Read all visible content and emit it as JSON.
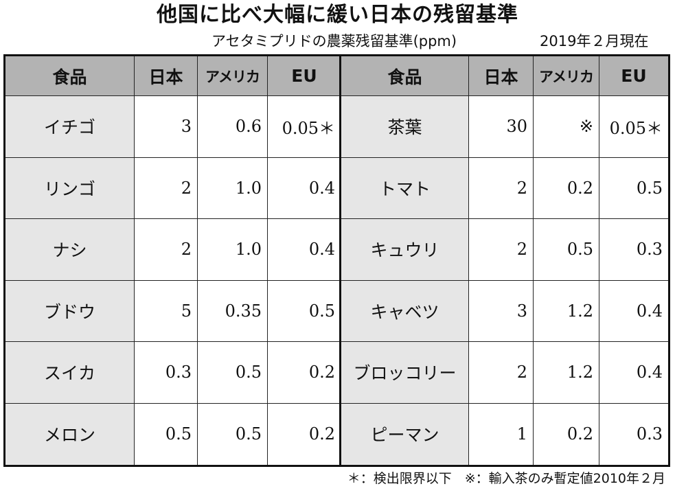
{
  "title": "他国に比べ大幅に緩い日本の残留基準",
  "subtitle": "アセタミプリドの農薬残留基準(ppm)",
  "date": "2019年２月現在",
  "headers": {
    "food": "食品",
    "japan": "日本",
    "usa": "アメリカ",
    "eu": "EU"
  },
  "left_rows": [
    {
      "food": "イチゴ",
      "japan": "3",
      "usa": "0.6",
      "eu": "0.05＊"
    },
    {
      "food": "リンゴ",
      "japan": "2",
      "usa": "1.0",
      "eu": "0.4"
    },
    {
      "food": "ナシ",
      "japan": "2",
      "usa": "1.0",
      "eu": "0.4"
    },
    {
      "food": "ブドウ",
      "japan": "5",
      "usa": "0.35",
      "eu": "0.5"
    },
    {
      "food": "スイカ",
      "japan": "0.3",
      "usa": "0.5",
      "eu": "0.2"
    },
    {
      "food": "メロン",
      "japan": "0.5",
      "usa": "0.5",
      "eu": "0.2"
    }
  ],
  "right_rows": [
    {
      "food": "茶葉",
      "japan": "30",
      "usa": "※",
      "eu": "0.05＊"
    },
    {
      "food": "トマト",
      "japan": "2",
      "usa": "0.2",
      "eu": "0.5"
    },
    {
      "food": "キュウリ",
      "japan": "2",
      "usa": "0.5",
      "eu": "0.3"
    },
    {
      "food": "キャベツ",
      "japan": "3",
      "usa": "1.2",
      "eu": "0.4"
    },
    {
      "food": "ブロッコリー",
      "japan": "2",
      "usa": "1.2",
      "eu": "0.4"
    },
    {
      "food": "ピーマン",
      "japan": "1",
      "usa": "0.2",
      "eu": "0.3"
    }
  ],
  "footnote": "＊：検出限界以下　※：輸入茶のみ暫定値2010年２月"
}
